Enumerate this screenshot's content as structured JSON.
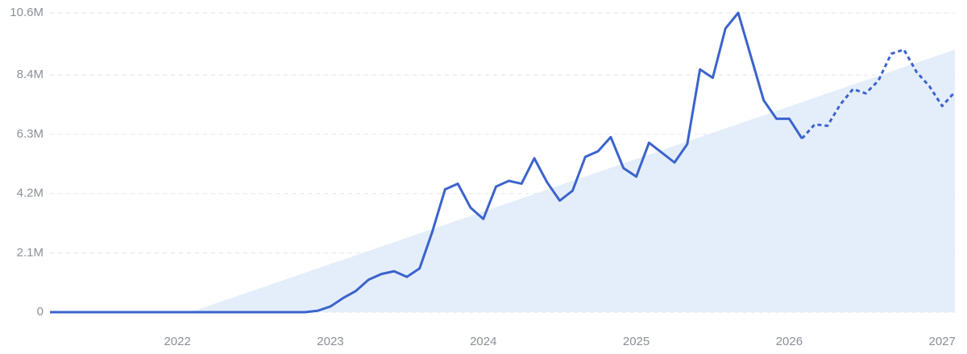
{
  "chart_data": {
    "type": "line",
    "categories": [
      null,
      null,
      null,
      null,
      null,
      null,
      null,
      null,
      null,
      null,
      "2022",
      null,
      null,
      null,
      null,
      null,
      null,
      null,
      null,
      null,
      null,
      null,
      "2023",
      null,
      null,
      null,
      null,
      null,
      null,
      null,
      null,
      null,
      null,
      null,
      "2024",
      null,
      null,
      null,
      null,
      null,
      null,
      null,
      null,
      null,
      null,
      null,
      "2025",
      null,
      null,
      null,
      null,
      null,
      null,
      null,
      null,
      null,
      null,
      null,
      "2026",
      null,
      null,
      null,
      null,
      null,
      null,
      null,
      null,
      null,
      null,
      null,
      "2027",
      null
    ],
    "series": [
      {
        "color": "#3b63cc",
        "dashed": false,
        "values": [
          0,
          0,
          0,
          0,
          0,
          0,
          0,
          0,
          0,
          0,
          0,
          0,
          0,
          0,
          0,
          0,
          0,
          0,
          0,
          0,
          0,
          50000,
          200000,
          500000,
          750000,
          1150000,
          1350000,
          1450000,
          1250000,
          1550000,
          2850000,
          4350000,
          4550000,
          3700000,
          3300000,
          4450000,
          4650000,
          4550000,
          5450000,
          4600000,
          3950000,
          4300000,
          5500000,
          5700000,
          6200000,
          5100000,
          4800000,
          6000000,
          5650000,
          5300000,
          5950000,
          8600000,
          8300000,
          10050000,
          10600000,
          9050000,
          7500000,
          6850000,
          6850000,
          6150000,
          null,
          null,
          null,
          null,
          null,
          null,
          null,
          null,
          null,
          null,
          null,
          null
        ]
      },
      {
        "color": "#3b63cc",
        "dashed": true,
        "values": [
          null,
          null,
          null,
          null,
          null,
          null,
          null,
          null,
          null,
          null,
          null,
          null,
          null,
          null,
          null,
          null,
          null,
          null,
          null,
          null,
          null,
          null,
          null,
          null,
          null,
          null,
          null,
          null,
          null,
          null,
          null,
          null,
          null,
          null,
          null,
          null,
          null,
          null,
          null,
          null,
          null,
          null,
          null,
          null,
          null,
          null,
          null,
          null,
          null,
          null,
          null,
          null,
          null,
          null,
          null,
          null,
          null,
          null,
          null,
          6150000,
          6650000,
          6600000,
          7350000,
          7900000,
          7750000,
          8200000,
          9150000,
          9300000,
          8500000,
          8000000,
          7300000,
          7800000
        ]
      },
      {
        "color": "#e4eefb",
        "area": true,
        "dashed": false,
        "values": [
          null,
          null,
          null,
          null,
          null,
          null,
          null,
          null,
          null,
          null,
          null,
          0,
          155000,
          310000,
          465000,
          620000,
          775000,
          930000,
          1085000,
          1240000,
          1395000,
          1550000,
          1705000,
          1860000,
          2015000,
          2170000,
          2325000,
          2480000,
          2635000,
          2790000,
          2945000,
          3100000,
          3255000,
          3410000,
          3565000,
          3720000,
          3875000,
          4030000,
          4185000,
          4340000,
          4495000,
          4650000,
          4805000,
          4960000,
          5115000,
          5270000,
          5425000,
          5580000,
          5735000,
          5890000,
          6045000,
          6200000,
          6355000,
          6510000,
          6665000,
          6820000,
          6975000,
          7130000,
          7285000,
          7440000,
          7595000,
          7750000,
          7905000,
          8060000,
          8215000,
          8370000,
          8525000,
          8680000,
          8835000,
          8990000,
          9145000,
          9300000
        ]
      }
    ],
    "ylim": [
      0,
      10600000
    ],
    "yticks": [
      0,
      {
        "value": 2100000,
        "label": "2.1M"
      },
      {
        "value": 4200000,
        "label": "4.2M"
      },
      {
        "value": 6300000,
        "label": "6.3M"
      },
      {
        "value": 8400000,
        "label": "8.4M"
      },
      {
        "value": 10600000,
        "label": "10.6M"
      }
    ],
    "grid": true
  }
}
